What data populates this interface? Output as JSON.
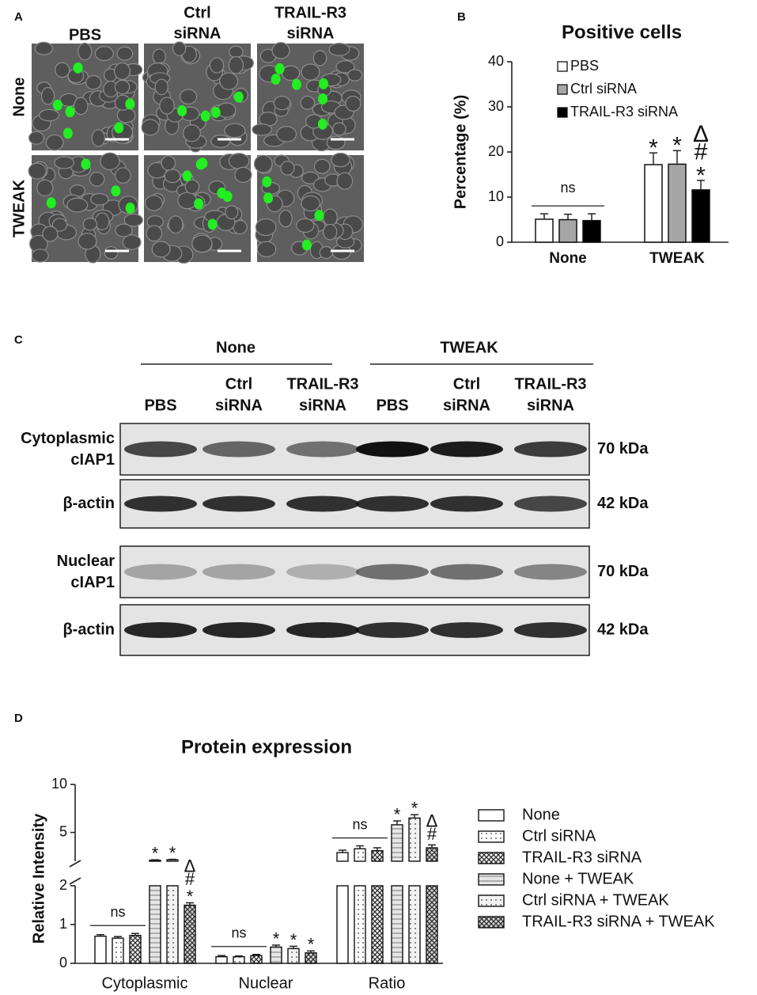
{
  "panel_labels": [
    "A",
    "B",
    "C",
    "D"
  ],
  "panel_a": {
    "columns": [
      [
        "PBS"
      ],
      [
        "Ctrl",
        "siRNA"
      ],
      [
        "TRAIL-R3",
        "siRNA"
      ]
    ],
    "rows": [
      "None",
      "TWEAK"
    ]
  },
  "panel_c": {
    "groups": [
      "None",
      "TWEAK"
    ],
    "lanes": [
      [
        "PBS"
      ],
      [
        "Ctrl",
        "siRNA"
      ],
      [
        "TRAIL-R3",
        "siRNA"
      ],
      [
        "PBS"
      ],
      [
        "Ctrl",
        "siRNA"
      ],
      [
        "TRAIL-R3",
        "siRNA"
      ]
    ],
    "blots": [
      {
        "label": [
          "Cytoplasmic",
          "cIAP1"
        ],
        "size": "70 kDa"
      },
      {
        "label": [
          "β-actin"
        ],
        "size": "42 kDa"
      },
      {
        "label": [
          "Nuclear",
          "cIAP1"
        ],
        "size": "70 kDa"
      },
      {
        "label": [
          "β-actin"
        ],
        "size": "42 kDa"
      }
    ]
  },
  "chart_data": [
    {
      "type": "bar",
      "title": "Positive cells",
      "ylabel": "Percentage (%)",
      "categories": [
        "None",
        "TWEAK"
      ],
      "ylim": [
        0,
        40
      ],
      "yticks": [
        0,
        10,
        20,
        30,
        40
      ],
      "group_labels": [
        "ns",
        null
      ],
      "legend": "upper left",
      "series": [
        {
          "name": "PBS",
          "color": "#ffffff",
          "values": [
            5.1,
            17.2
          ],
          "errors": [
            1.2,
            2.6
          ],
          "marks": [
            [],
            [
              "*"
            ]
          ]
        },
        {
          "name": "Ctrl siRNA",
          "color": "#a6a6a6",
          "values": [
            5.0,
            17.3
          ],
          "errors": [
            1.2,
            3.0
          ],
          "marks": [
            [],
            [
              "*"
            ]
          ]
        },
        {
          "name": "TRAIL-R3 siRNA",
          "color": "#000000",
          "values": [
            4.8,
            11.6
          ],
          "errors": [
            1.5,
            2.1
          ],
          "marks": [
            [],
            [
              "*",
              "#",
              "Δ"
            ]
          ]
        }
      ]
    },
    {
      "type": "broken-bar",
      "title": "Protein expression",
      "ylabel": "Relative Intensity",
      "categories": [
        "Cytoplasmic",
        "Nuclear",
        "Ratio"
      ],
      "segments": [
        {
          "ylim": [
            0,
            2
          ],
          "yticks": [
            0,
            1,
            2
          ]
        },
        {
          "ylim": [
            2,
            10
          ],
          "yticks": [
            5,
            10
          ]
        }
      ],
      "group_labels": [
        "ns",
        "ns",
        "ns"
      ],
      "legend": "right",
      "series": [
        {
          "name": "None",
          "color": "#ffffff",
          "pattern": "none",
          "values": [
            0.7,
            0.17,
            2.9
          ],
          "errors": [
            0.04,
            0.03,
            0.25
          ],
          "marks": [
            [],
            [],
            []
          ]
        },
        {
          "name": "Ctrl siRNA",
          "color": "#ffffff",
          "pattern": "dots",
          "values": [
            0.65,
            0.17,
            3.3
          ],
          "errors": [
            0.04,
            0.02,
            0.3
          ],
          "marks": [
            [],
            [],
            []
          ]
        },
        {
          "name": "TRAIL-R3 siRNA",
          "color": "#ffffff",
          "pattern": "cross",
          "values": [
            0.72,
            0.2,
            3.1
          ],
          "errors": [
            0.05,
            0.03,
            0.3
          ],
          "marks": [
            [],
            [],
            []
          ]
        },
        {
          "name": "None + TWEAK",
          "color": "#e6e6e6",
          "pattern": "hlines",
          "values": [
            2.1,
            0.42,
            5.8
          ],
          "errors": [
            0.05,
            0.05,
            0.4
          ],
          "marks": [
            [
              "*"
            ],
            [
              "*"
            ],
            [
              "*"
            ]
          ]
        },
        {
          "name": "Ctrl siRNA + TWEAK",
          "color": "#f2f2f2",
          "pattern": "dots",
          "values": [
            2.15,
            0.38,
            6.5
          ],
          "errors": [
            0.05,
            0.06,
            0.35
          ],
          "marks": [
            [
              "*"
            ],
            [
              "*"
            ],
            [
              "*"
            ]
          ]
        },
        {
          "name": "TRAIL-R3 siRNA + TWEAK",
          "color": "#d9d9d9",
          "pattern": "cross",
          "values": [
            1.5,
            0.27,
            3.4
          ],
          "errors": [
            0.06,
            0.05,
            0.3
          ],
          "marks": [
            [
              "*",
              "#",
              "Δ"
            ],
            [
              "*"
            ],
            [
              "#",
              "Δ"
            ]
          ]
        }
      ]
    }
  ]
}
